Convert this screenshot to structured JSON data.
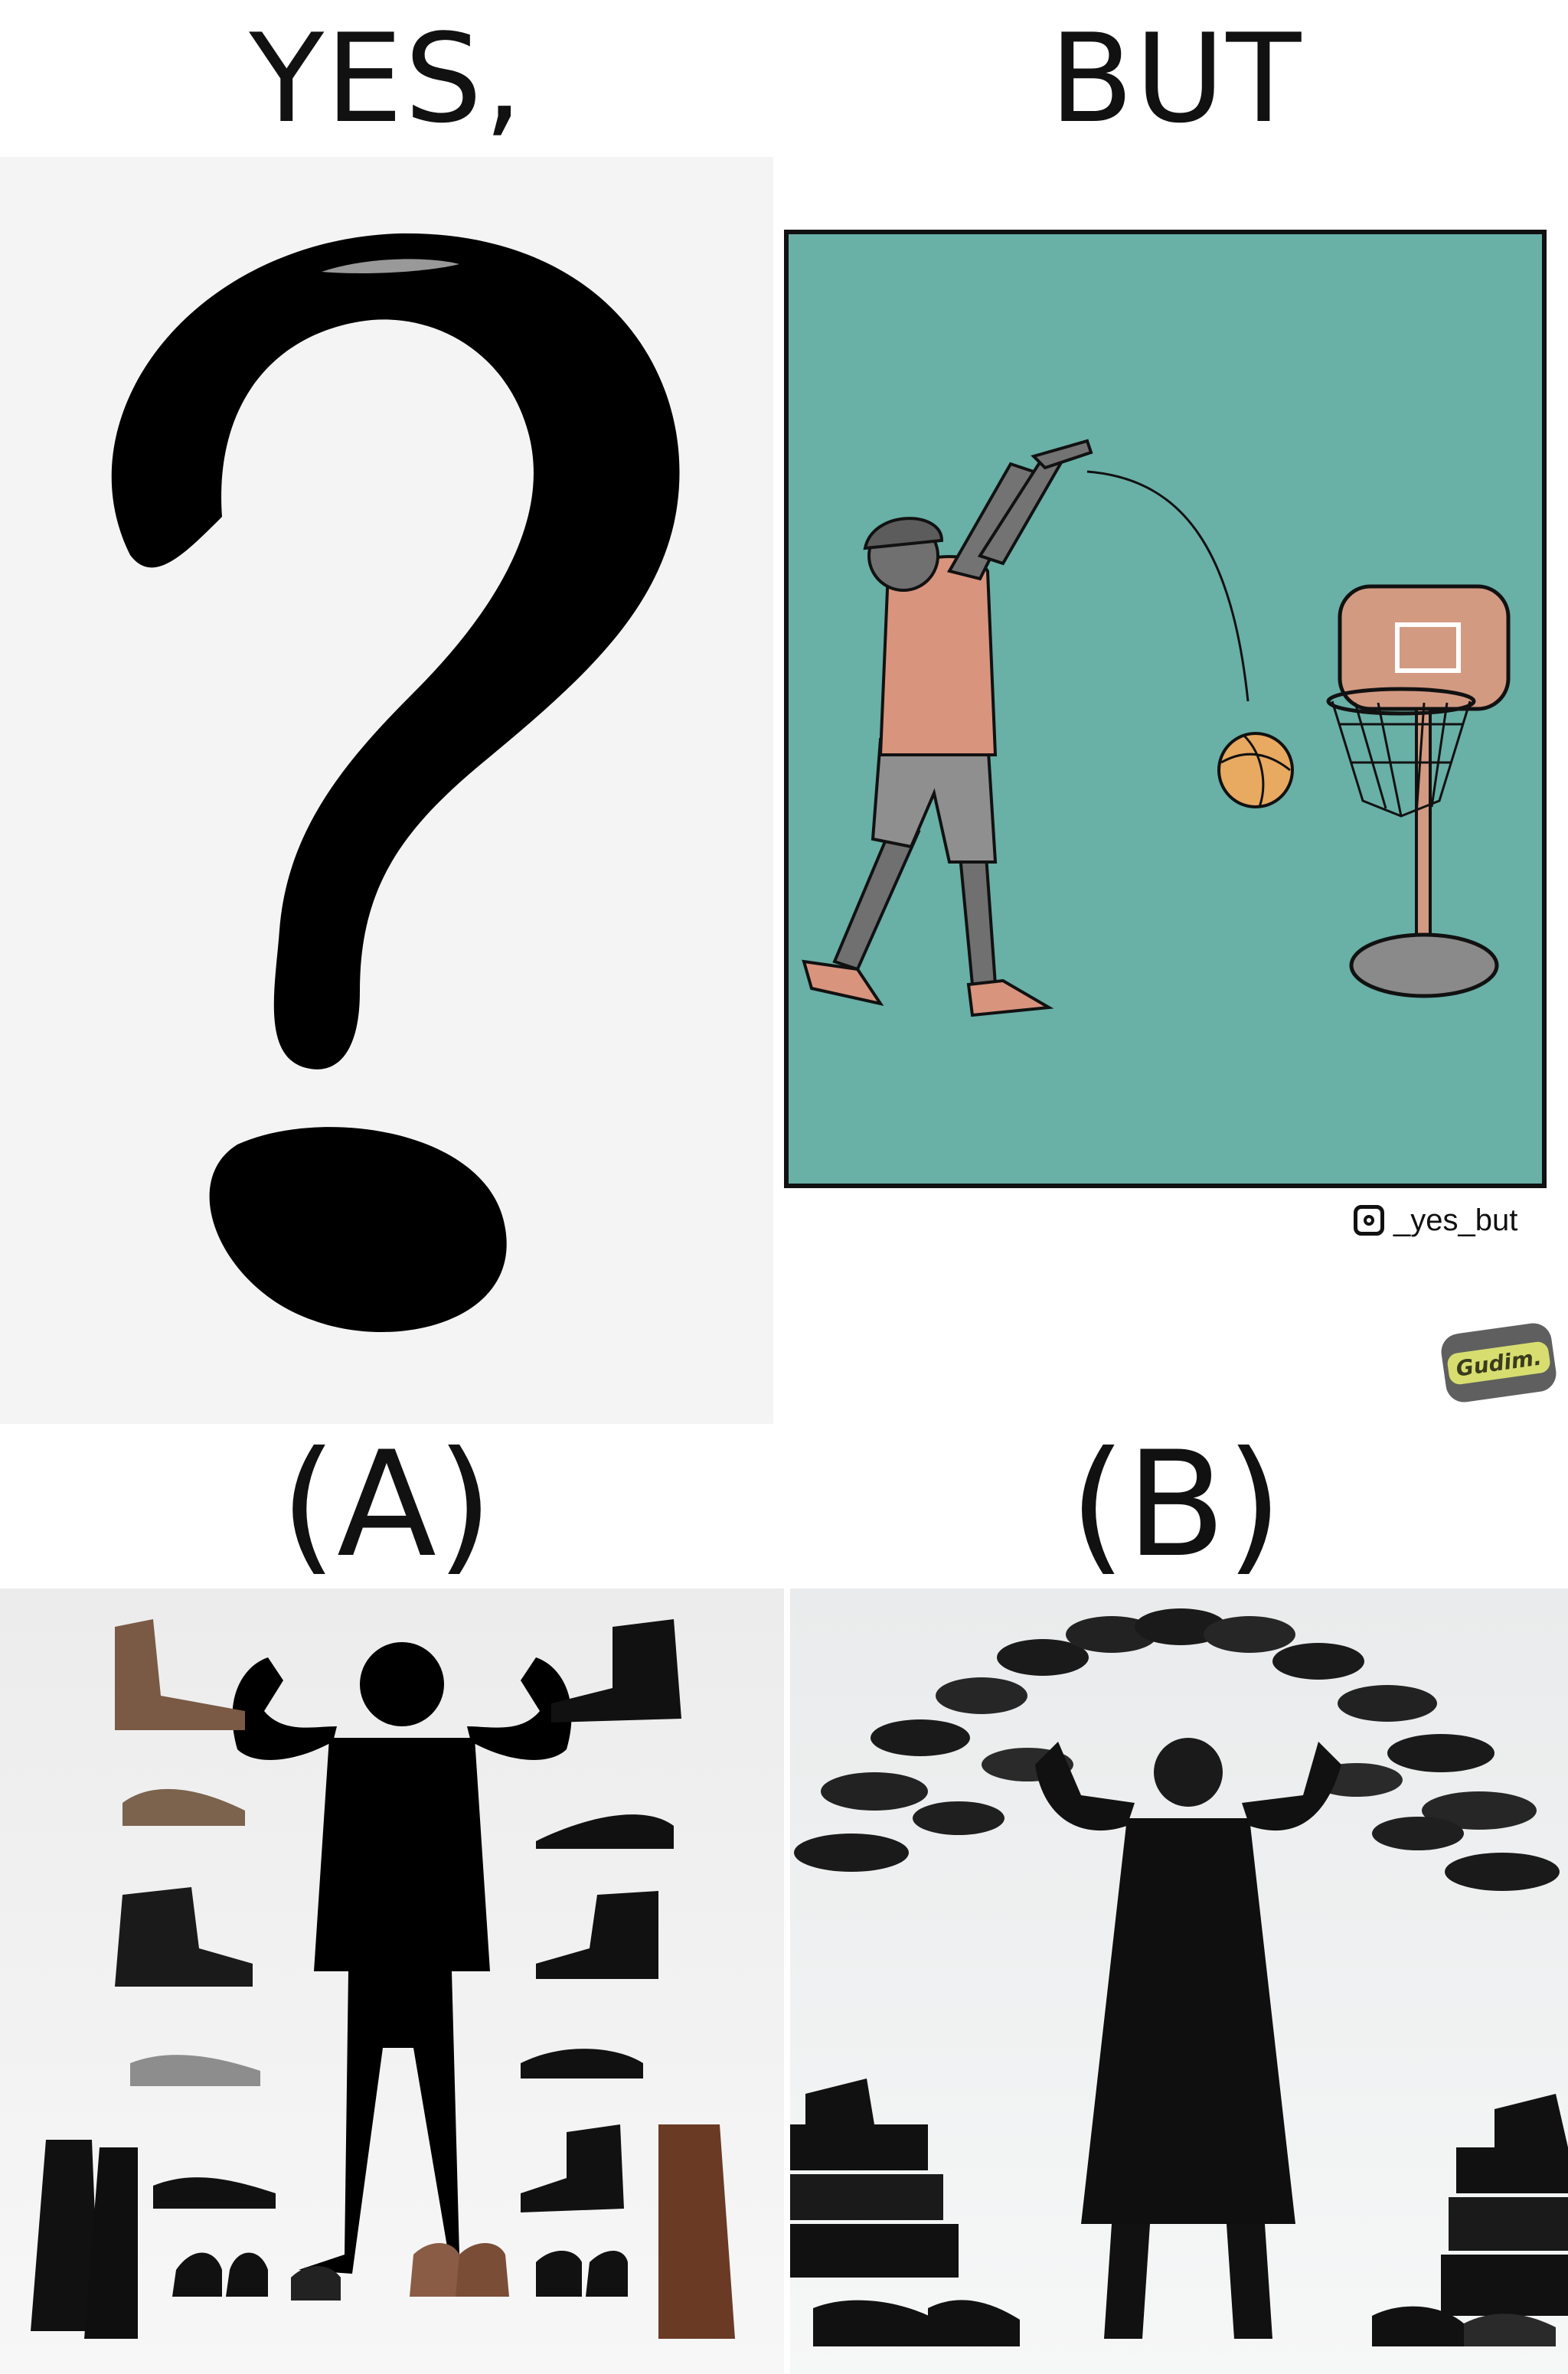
{
  "headings": {
    "left": "YES,",
    "right": "BUT"
  },
  "options": {
    "a": "(A)",
    "b": "(B)"
  },
  "credit": {
    "handle": "_yes_but",
    "icon": "instagram-icon"
  },
  "badge": {
    "text": "Gudim."
  },
  "colors": {
    "comic_background": "#69b0a7",
    "backboard": "#d39a82",
    "ball": "#e8a960",
    "shirt": "#d9947e",
    "shorts": "#8f8f8f",
    "badge_bg": "#5f5f5f",
    "badge_text_bg": "#d7de6f"
  }
}
